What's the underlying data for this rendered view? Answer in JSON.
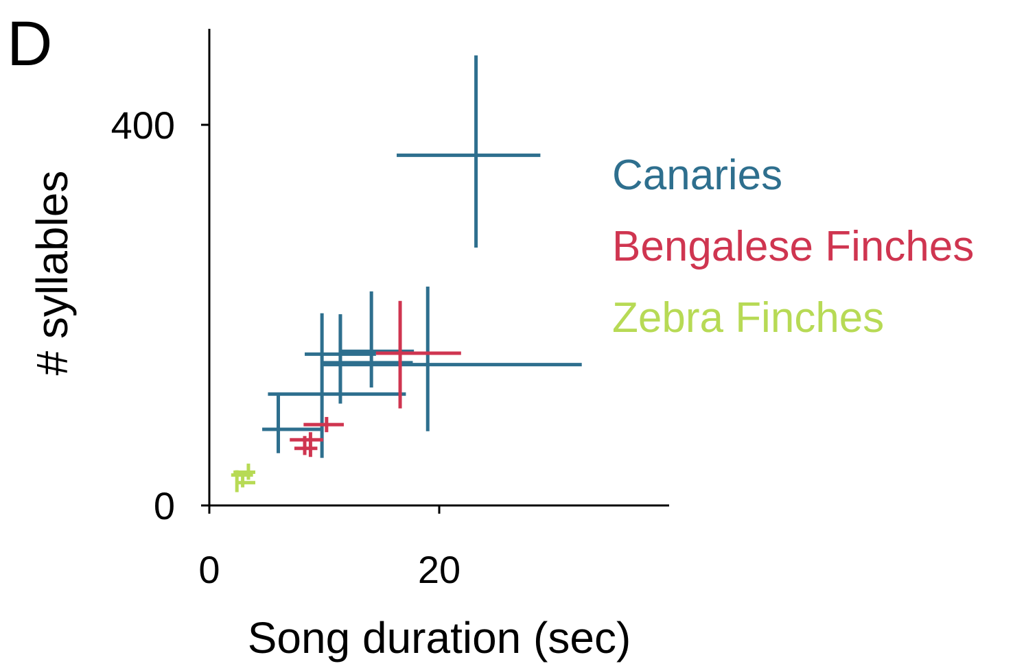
{
  "panel_label": "D",
  "colors": {
    "Canaries": "#2e6f8e",
    "Bengalese Finches": "#cf3550",
    "Zebra Finches": "#b7da55"
  },
  "chart_data": {
    "type": "scatter",
    "title": "",
    "xlabel": "Song duration (sec)",
    "ylabel": "# syllables",
    "xlim": [
      0,
      40
    ],
    "ylim": [
      0,
      400
    ],
    "xticks": [
      0,
      20
    ],
    "yticks": [
      0,
      400
    ],
    "grid": false,
    "legend": {
      "placement": "right",
      "entries": [
        "Canaries",
        "Bengalese Finches",
        "Zebra Finches"
      ]
    },
    "series": [
      {
        "name": "Canaries",
        "points": [
          {
            "x": 23.2,
            "y": 368,
            "xmin": 16.3,
            "xmax": 28.8,
            "ymin": 271,
            "ymax": 473
          },
          {
            "x": 19.0,
            "y": 148,
            "xmin": 9.8,
            "xmax": 32.4,
            "ymin": 78,
            "ymax": 230
          },
          {
            "x": 14.1,
            "y": 159,
            "xmin": 8.3,
            "xmax": 14.5,
            "ymin": 124,
            "ymax": 225
          },
          {
            "x": 11.4,
            "y": 150,
            "xmin": 9.8,
            "xmax": 17.7,
            "ymin": 121,
            "ymax": 201
          },
          {
            "x": 11.4,
            "y": 162,
            "xmin": 11.4,
            "xmax": 17.8,
            "ymin": 107,
            "ymax": 200
          },
          {
            "x": 9.8,
            "y": 117,
            "xmin": 5.1,
            "xmax": 17.1,
            "ymin": 50,
            "ymax": 202
          },
          {
            "x": 6.0,
            "y": 80,
            "xmin": 4.6,
            "xmax": 9.8,
            "ymin": 55,
            "ymax": 117
          }
        ]
      },
      {
        "name": "Bengalese Finches",
        "points": [
          {
            "x": 16.6,
            "y": 160,
            "xmin": 14.5,
            "xmax": 21.9,
            "ymin": 102,
            "ymax": 215
          },
          {
            "x": 10.2,
            "y": 85,
            "xmin": 8.2,
            "xmax": 11.7,
            "ymin": 77,
            "ymax": 93
          },
          {
            "x": 8.8,
            "y": 69,
            "xmin": 7.0,
            "xmax": 9.9,
            "ymin": 51,
            "ymax": 77
          },
          {
            "x": 8.3,
            "y": 60,
            "xmin": 7.4,
            "xmax": 9.4,
            "ymin": 53,
            "ymax": 73
          }
        ]
      },
      {
        "name": "Zebra Finches",
        "points": [
          {
            "x": 3.4,
            "y": 35,
            "xmin": 2.1,
            "xmax": 4.0,
            "ymin": 27,
            "ymax": 44
          },
          {
            "x": 2.4,
            "y": 32,
            "xmin": 1.9,
            "xmax": 3.8,
            "ymin": 14,
            "ymax": 37
          },
          {
            "x": 2.9,
            "y": 24,
            "xmin": 2.4,
            "xmax": 4.0,
            "ymin": 19,
            "ymax": 31
          }
        ]
      }
    ]
  }
}
